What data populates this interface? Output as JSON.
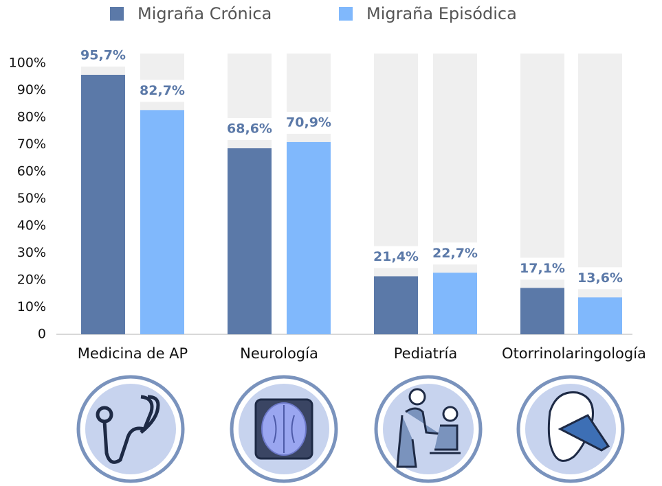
{
  "chart_data": {
    "type": "bar",
    "categories": [
      "Medicina de AP",
      "Neurología",
      "Pediatría",
      "Otorrinolaringología"
    ],
    "series": [
      {
        "name": "Migraña Crónica",
        "color": "#5b79a8",
        "values": [
          95.7,
          68.6,
          21.4,
          17.1
        ],
        "value_labels": [
          "95,7%",
          "68,6%",
          "21,4%",
          "17,1%"
        ]
      },
      {
        "name": "Migraña Episódica",
        "color": "#80b8fc",
        "values": [
          82.7,
          70.9,
          22.7,
          13.6
        ],
        "value_labels": [
          "82,7%",
          "70,9%",
          "22,7%",
          "13,6%"
        ]
      }
    ],
    "ylim": [
      0,
      100
    ],
    "yticks": [
      0,
      {
        "value": 10,
        "label": "10%"
      },
      {
        "value": 20,
        "label": "20%"
      },
      {
        "value": 30,
        "label": "30%"
      },
      {
        "value": 40,
        "label": "40%"
      },
      {
        "value": 50,
        "label": "50%"
      },
      {
        "value": 60,
        "label": "60%"
      },
      {
        "value": 70,
        "label": "70%"
      },
      {
        "value": 80,
        "label": "80%"
      },
      {
        "value": 90,
        "label": "90%"
      },
      {
        "value": 100,
        "label": "100%"
      }
    ],
    "legend": "top"
  }
}
